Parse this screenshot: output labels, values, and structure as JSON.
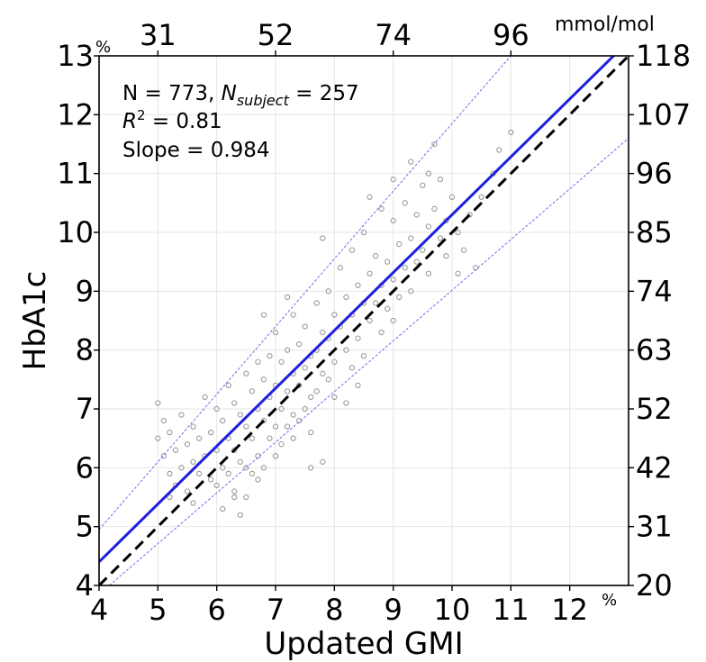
{
  "chart_data": {
    "type": "scatter",
    "title": "",
    "xlabel": "Updated GMI",
    "ylabel": "HbA1c",
    "x_unit": "%",
    "y_unit": "%",
    "secondary_unit": "mmol/mol",
    "xlim": [
      4,
      13
    ],
    "ylim": [
      4,
      13
    ],
    "x_ticks": [
      "4",
      "5",
      "6",
      "7",
      "8",
      "9",
      "10",
      "11",
      "12"
    ],
    "y_ticks": [
      "4",
      "5",
      "6",
      "7",
      "8",
      "9",
      "10",
      "11",
      "12",
      "13"
    ],
    "top_ticks": [
      {
        "value": 5,
        "label": "31"
      },
      {
        "value": 7,
        "label": "52"
      },
      {
        "value": 9,
        "label": "74"
      },
      {
        "value": 11,
        "label": "96"
      }
    ],
    "right_ticks": [
      "20",
      "31",
      "42",
      "52",
      "63",
      "74",
      "85",
      "96",
      "107",
      "118"
    ],
    "grid": true,
    "annotations": {
      "n_text": "N = 773, ",
      "n_subject_base": "N",
      "n_subject_sub": "subject",
      "n_subject_value": " = 257",
      "r2_base": "R",
      "r2_sup": "2",
      "r2_value": " = 0.81",
      "slope_text": "Slope = 0.984"
    },
    "lines": [
      {
        "type": "identity",
        "style": "dashed",
        "color": "#000000",
        "x": [
          4,
          13
        ],
        "y": [
          4,
          13
        ]
      },
      {
        "type": "fit",
        "style": "solid",
        "color": "#1f1fe0",
        "x": [
          4,
          13
        ],
        "y": [
          4.4,
          13.25
        ]
      },
      {
        "type": "upper-bound",
        "style": "dotted",
        "color": "#6c6cf0",
        "x": [
          4,
          11
        ],
        "y": [
          4.95,
          13.0
        ]
      },
      {
        "type": "lower-bound",
        "style": "dotted",
        "color": "#6c6cf0",
        "x": [
          4,
          13
        ],
        "y": [
          3.85,
          11.6
        ]
      }
    ],
    "scatter_color": "#9a9a9a",
    "scatter_points": [
      [
        5.0,
        7.1
      ],
      [
        5.0,
        6.5
      ],
      [
        5.1,
        6.8
      ],
      [
        5.1,
        6.2
      ],
      [
        5.2,
        6.6
      ],
      [
        5.2,
        5.9
      ],
      [
        5.3,
        6.3
      ],
      [
        5.3,
        5.7
      ],
      [
        5.4,
        6.9
      ],
      [
        5.4,
        6.0
      ],
      [
        5.5,
        6.4
      ],
      [
        5.5,
        5.6
      ],
      [
        5.6,
        6.7
      ],
      [
        5.6,
        6.1
      ],
      [
        5.7,
        5.9
      ],
      [
        5.7,
        6.5
      ],
      [
        5.8,
        7.2
      ],
      [
        5.8,
        6.2
      ],
      [
        5.9,
        5.8
      ],
      [
        5.9,
        6.6
      ],
      [
        6.0,
        7.0
      ],
      [
        6.0,
        6.3
      ],
      [
        6.0,
        5.7
      ],
      [
        6.1,
        6.8
      ],
      [
        6.1,
        6.0
      ],
      [
        6.2,
        7.4
      ],
      [
        6.2,
        6.5
      ],
      [
        6.2,
        5.9
      ],
      [
        6.3,
        7.1
      ],
      [
        6.3,
        6.3
      ],
      [
        6.3,
        5.5
      ],
      [
        6.4,
        6.9
      ],
      [
        6.4,
        6.1
      ],
      [
        6.4,
        5.2
      ],
      [
        6.5,
        7.6
      ],
      [
        6.5,
        6.7
      ],
      [
        6.5,
        6.0
      ],
      [
        6.6,
        7.3
      ],
      [
        6.6,
        6.5
      ],
      [
        6.6,
        5.9
      ],
      [
        6.7,
        7.8
      ],
      [
        6.7,
        7.0
      ],
      [
        6.7,
        6.2
      ],
      [
        6.8,
        7.5
      ],
      [
        6.8,
        6.8
      ],
      [
        6.8,
        6.0
      ],
      [
        6.9,
        7.9
      ],
      [
        6.9,
        7.2
      ],
      [
        6.9,
        6.5
      ],
      [
        7.0,
        8.3
      ],
      [
        7.0,
        7.4
      ],
      [
        7.0,
        6.7
      ],
      [
        7.0,
        6.2
      ],
      [
        7.1,
        7.8
      ],
      [
        7.1,
        7.0
      ],
      [
        7.1,
        6.4
      ],
      [
        7.2,
        8.0
      ],
      [
        7.2,
        7.3
      ],
      [
        7.2,
        6.7
      ],
      [
        7.3,
        8.6
      ],
      [
        7.3,
        7.6
      ],
      [
        7.3,
        6.9
      ],
      [
        7.4,
        8.1
      ],
      [
        7.4,
        7.4
      ],
      [
        7.4,
        6.8
      ],
      [
        7.5,
        8.4
      ],
      [
        7.5,
        7.7
      ],
      [
        7.5,
        7.0
      ],
      [
        7.6,
        7.9
      ],
      [
        7.6,
        7.2
      ],
      [
        7.6,
        6.6
      ],
      [
        7.7,
        8.8
      ],
      [
        7.7,
        8.0
      ],
      [
        7.7,
        7.3
      ],
      [
        7.8,
        8.3
      ],
      [
        7.8,
        7.6
      ],
      [
        7.8,
        6.1
      ],
      [
        7.9,
        9.0
      ],
      [
        7.9,
        8.2
      ],
      [
        7.9,
        7.5
      ],
      [
        8.0,
        8.6
      ],
      [
        8.0,
        7.8
      ],
      [
        8.0,
        7.2
      ],
      [
        8.1,
        9.4
      ],
      [
        8.1,
        8.4
      ],
      [
        8.2,
        8.9
      ],
      [
        8.2,
        8.0
      ],
      [
        8.3,
        9.7
      ],
      [
        8.3,
        8.6
      ],
      [
        8.3,
        7.7
      ],
      [
        8.4,
        9.1
      ],
      [
        8.4,
        8.2
      ],
      [
        8.5,
        10.0
      ],
      [
        8.5,
        8.8
      ],
      [
        8.5,
        7.9
      ],
      [
        8.6,
        9.3
      ],
      [
        8.6,
        8.5
      ],
      [
        8.7,
        9.6
      ],
      [
        8.7,
        8.8
      ],
      [
        8.8,
        10.4
      ],
      [
        8.8,
        9.1
      ],
      [
        8.8,
        8.3
      ],
      [
        8.9,
        9.5
      ],
      [
        8.9,
        8.7
      ],
      [
        9.0,
        10.2
      ],
      [
        9.0,
        9.2
      ],
      [
        9.0,
        8.5
      ],
      [
        9.1,
        9.8
      ],
      [
        9.1,
        8.9
      ],
      [
        9.2,
        10.5
      ],
      [
        9.2,
        9.4
      ],
      [
        9.3,
        11.2
      ],
      [
        9.3,
        9.9
      ],
      [
        9.3,
        9.0
      ],
      [
        9.4,
        10.3
      ],
      [
        9.4,
        9.5
      ],
      [
        9.5,
        10.8
      ],
      [
        9.5,
        9.7
      ],
      [
        9.6,
        10.1
      ],
      [
        9.6,
        9.3
      ],
      [
        9.7,
        11.5
      ],
      [
        9.7,
        10.4
      ],
      [
        9.8,
        9.9
      ],
      [
        9.8,
        10.9
      ],
      [
        9.9,
        10.2
      ],
      [
        9.9,
        9.6
      ],
      [
        10.0,
        10.6
      ],
      [
        10.1,
        10.0
      ],
      [
        10.2,
        9.7
      ],
      [
        10.3,
        10.3
      ],
      [
        10.4,
        9.4
      ],
      [
        10.5,
        10.6
      ],
      [
        10.7,
        11.0
      ],
      [
        10.8,
        11.4
      ],
      [
        11.0,
        11.7
      ],
      [
        10.1,
        9.3
      ],
      [
        5.2,
        5.5
      ],
      [
        5.6,
        5.4
      ],
      [
        6.1,
        5.3
      ],
      [
        6.3,
        5.6
      ],
      [
        6.5,
        5.5
      ],
      [
        6.7,
        5.8
      ],
      [
        7.3,
        6.5
      ],
      [
        7.6,
        6.0
      ],
      [
        8.2,
        7.1
      ],
      [
        8.4,
        7.4
      ],
      [
        6.8,
        8.6
      ],
      [
        7.2,
        8.9
      ],
      [
        7.8,
        9.9
      ],
      [
        8.6,
        10.6
      ],
      [
        9.0,
        10.9
      ],
      [
        9.6,
        11.0
      ]
    ]
  }
}
